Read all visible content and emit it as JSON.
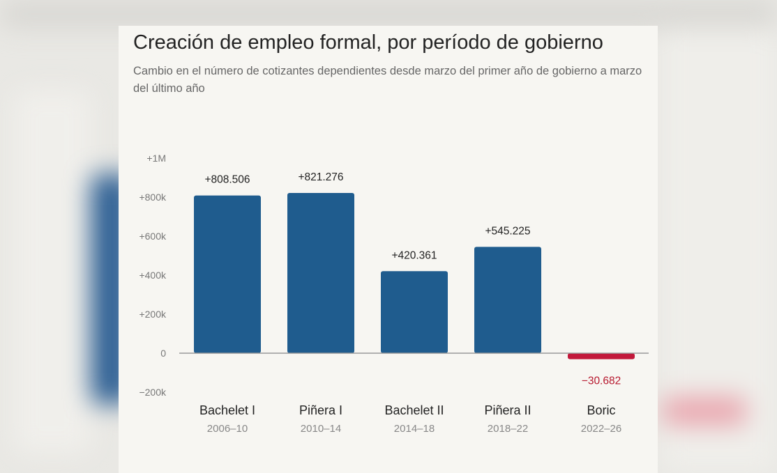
{
  "chart_data": {
    "type": "bar",
    "title": "Creación de empleo formal, por período de gobierno",
    "subtitle": "Cambio en el número de cotizantes dependientes desde marzo del primer año de gobierno a marzo del último año",
    "categories": [
      "Bachelet I",
      "Piñera I",
      "Bachelet II",
      "Piñera II",
      "Boric"
    ],
    "category_periods": [
      "2006–10",
      "2010–14",
      "2014–18",
      "2018–22",
      "2022–26"
    ],
    "values": [
      808506,
      821276,
      420361,
      545225,
      -30682
    ],
    "data_labels": [
      "+808.506",
      "+821.276",
      "+420.361",
      "+545.225",
      "−30.682"
    ],
    "ylim": [
      -200000,
      1000000
    ],
    "yticks": [
      1000000,
      800000,
      600000,
      400000,
      200000,
      0,
      -200000
    ],
    "ytick_labels": [
      "+1M",
      "+800k",
      "+600k",
      "+400k",
      "+200k",
      "0",
      "−200k"
    ],
    "xlabel": "",
    "ylabel": "",
    "grid": false,
    "legend": "none",
    "colors": {
      "positive": "#1f5c8e",
      "negative": "#c2183a",
      "zero_line": "#999999"
    }
  }
}
